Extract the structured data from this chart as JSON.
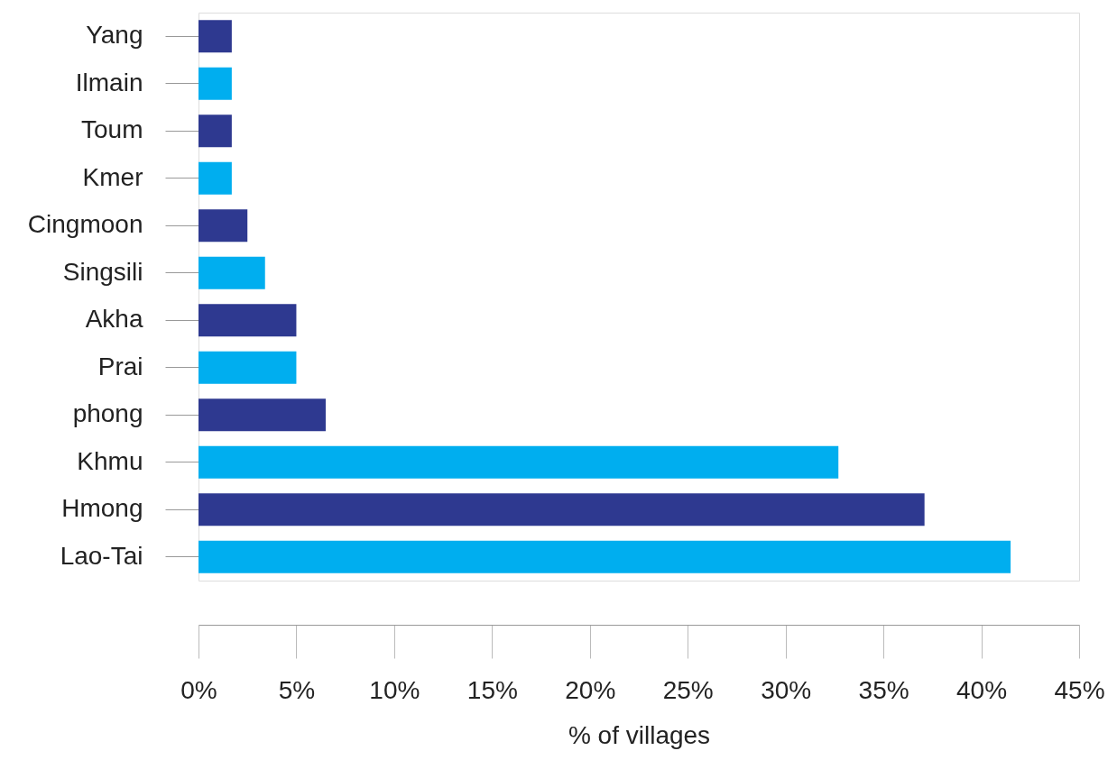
{
  "chart_data": {
    "type": "bar",
    "orientation": "horizontal",
    "xlabel": "% of villages",
    "categories": [
      "Yang",
      "Ilmain",
      "Toum",
      "Kmer",
      "Cingmoon",
      "Singsili",
      "Akha",
      "Prai",
      "phong",
      "Khmu",
      "Hmong",
      "Lao-Tai"
    ],
    "values": [
      1.7,
      1.7,
      1.7,
      1.7,
      2.5,
      3.4,
      5.0,
      5.0,
      6.5,
      32.7,
      37.1,
      41.5
    ],
    "colors": [
      "#2e3990",
      "#00aeef",
      "#2e3990",
      "#00aeef",
      "#2e3990",
      "#00aeef",
      "#2e3990",
      "#00aeef",
      "#2e3990",
      "#00aeef",
      "#2e3990",
      "#00aeef"
    ],
    "xlim": [
      0,
      45
    ],
    "xticks": [
      {
        "value": 0,
        "label": "0%"
      },
      {
        "value": 5,
        "label": "5%"
      },
      {
        "value": 10,
        "label": "10%"
      },
      {
        "value": 15,
        "label": "15%"
      },
      {
        "value": 20,
        "label": "20%"
      },
      {
        "value": 25,
        "label": "25%"
      },
      {
        "value": 30,
        "label": "30%"
      },
      {
        "value": 35,
        "label": "35%"
      },
      {
        "value": 40,
        "label": "40%"
      },
      {
        "value": 45,
        "label": "45%"
      }
    ],
    "grid": false
  }
}
